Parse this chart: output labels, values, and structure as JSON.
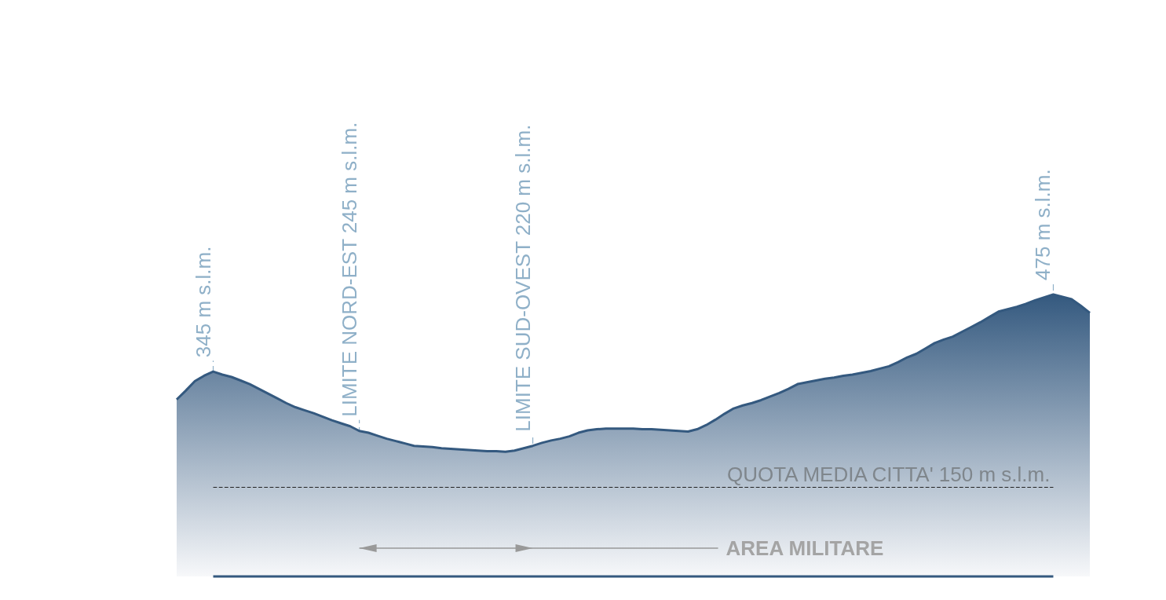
{
  "chart_data": {
    "type": "area",
    "categories": [
      null,
      null,
      null,
      null,
      null,
      null,
      null,
      null,
      null,
      null,
      null,
      null,
      null,
      null,
      null,
      null,
      null,
      null,
      null,
      null,
      null,
      null,
      null,
      null,
      null,
      null,
      null,
      null,
      null,
      null,
      null,
      null,
      null,
      null,
      null,
      null,
      null,
      null,
      null,
      null,
      null,
      null,
      null,
      null,
      null,
      null,
      null,
      null,
      null,
      null,
      null,
      null,
      null,
      null,
      null,
      null,
      null,
      null,
      null,
      null,
      null,
      null,
      null,
      null,
      null,
      null,
      null,
      null,
      null,
      null,
      null,
      null,
      null,
      null,
      null,
      null,
      null,
      null,
      null,
      null,
      null,
      null,
      null,
      null,
      null,
      null,
      null,
      null,
      null,
      null,
      null,
      null,
      null,
      null,
      null,
      null,
      null,
      null,
      null,
      null,
      null
    ],
    "series": [
      {
        "color": "#34597f",
        "values": [
          298,
          313,
          329,
          338,
          345,
          340,
          336,
          330,
          324,
          316,
          308,
          300,
          292,
          285,
          280,
          275,
          269,
          263,
          258,
          253,
          245,
          242,
          237,
          232,
          228,
          224,
          220,
          219,
          218,
          216,
          215,
          214,
          213,
          212,
          211,
          211,
          210,
          212,
          216,
          220,
          225,
          229,
          232,
          236,
          242,
          246,
          248,
          249,
          249,
          249,
          249,
          248,
          248,
          247,
          246,
          245,
          244,
          248,
          255,
          264,
          274,
          283,
          288,
          292,
          297,
          303,
          309,
          316,
          324,
          327,
          330,
          333,
          335,
          338,
          340,
          343,
          346,
          350,
          354,
          361,
          369,
          375,
          384,
          393,
          399,
          404,
          412,
          420,
          428,
          437,
          446,
          450,
          454,
          459,
          465,
          470,
          475,
          471,
          467,
          456,
          444
        ],
        "value_labels": [
          null,
          null,
          null,
          null,
          "345 m s.l.m.",
          null,
          null,
          null,
          null,
          null,
          null,
          null,
          null,
          null,
          null,
          null,
          null,
          null,
          null,
          null,
          "LIMITE NORD-EST 245 m s.l.m.",
          null,
          null,
          null,
          null,
          null,
          null,
          null,
          null,
          null,
          null,
          null,
          null,
          null,
          null,
          null,
          null,
          null,
          null,
          "LIMITE SUD-OVEST 220 m s.l.m.",
          null,
          null,
          null,
          null,
          null,
          null,
          null,
          null,
          null,
          null,
          null,
          null,
          null,
          null,
          null,
          null,
          null,
          null,
          null,
          null,
          null,
          null,
          null,
          null,
          null,
          null,
          null,
          null,
          null,
          null,
          null,
          null,
          null,
          null,
          null,
          null,
          null,
          null,
          null,
          null,
          null,
          null,
          null,
          null,
          null,
          null,
          null,
          null,
          null,
          null,
          null,
          null,
          null,
          null,
          null,
          null,
          "475 m s.l.m.",
          null,
          null,
          null,
          null
        ]
      }
    ],
    "tick_labels": false,
    "grid": false,
    "marker": "none",
    "ref_lines": [
      {
        "axis": "y",
        "value": 150,
        "label": "QUOTA MEDIA CITTA' 150 m s.l.m.",
        "color": "#222222",
        "line_style": "dashed"
      }
    ],
    "annotations": [
      "AREA MILITARE"
    ]
  }
}
